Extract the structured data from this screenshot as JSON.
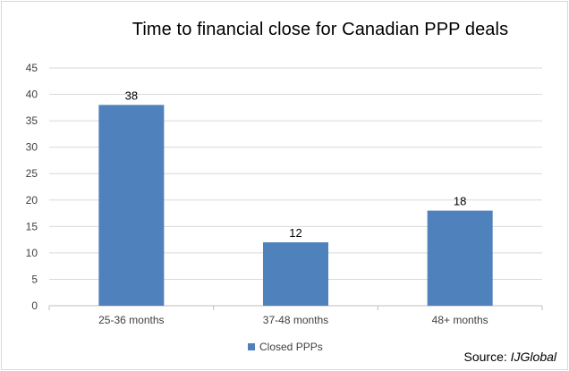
{
  "chart_data": {
    "type": "bar",
    "title": "Time to financial close for Canadian PPP deals",
    "categories": [
      "25-36 months",
      "37-48 months",
      "48+ months"
    ],
    "series": [
      {
        "name": "Closed PPPs",
        "values": [
          38,
          12,
          18
        ],
        "color": "#4f81bd"
      }
    ],
    "data_labels": [
      "38",
      "12",
      "18"
    ],
    "ylim": [
      0,
      45
    ],
    "yticks": [
      0,
      5,
      10,
      15,
      20,
      25,
      30,
      35,
      40,
      45
    ],
    "grid": true,
    "legend_position": "bottom",
    "source_label": "Source: ",
    "source_name": "IJGlobal"
  }
}
